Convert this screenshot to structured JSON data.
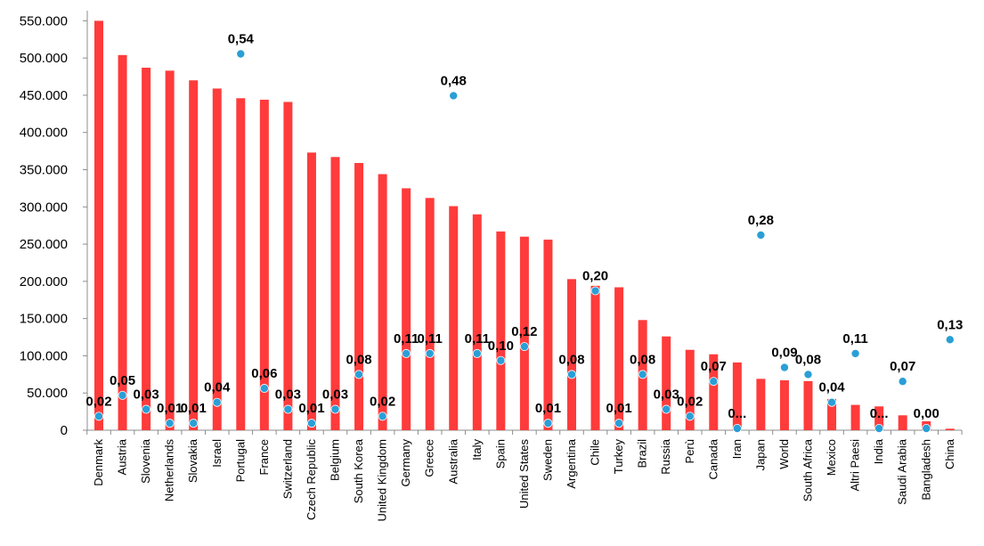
{
  "chart_data": {
    "type": "bar",
    "title": "",
    "xlabel": "",
    "ylabel": "",
    "ylim": [
      0,
      560000
    ],
    "y_ticks": [
      0,
      50000,
      100000,
      150000,
      200000,
      250000,
      300000,
      350000,
      400000,
      450000,
      500000,
      550000
    ],
    "y_tick_labels": [
      "0",
      "50.000",
      "100.000",
      "150.000",
      "200.000",
      "250.000",
      "300.000",
      "350.000",
      "400.000",
      "450.000",
      "500.000",
      "550.000"
    ],
    "grid": false,
    "legend": "none",
    "categories": [
      "Denmark",
      "Austria",
      "Slovenia",
      "Netherlands",
      "Slovakia",
      "Israel",
      "Portugal",
      "France",
      "Switzerland",
      "Czech Republic",
      "Belgium",
      "South Korea",
      "United Kingdom",
      "Germany",
      "Greece",
      "Australia",
      "Italy",
      "Spain",
      "United States",
      "Sweden",
      "Argentina",
      "Chile",
      "Turkey",
      "Brazil",
      "Russia",
      "Perù",
      "Canada",
      "Iran",
      "Japan",
      "World",
      "South Africa",
      "Mexico",
      "Altri Paesi",
      "India",
      "Saudi Arabia",
      "Bangladesh",
      "China"
    ],
    "series": [
      {
        "type": "bar",
        "color": "#ff3b3b",
        "values": [
          550000,
          504000,
          487000,
          483000,
          470000,
          459000,
          446000,
          444000,
          441000,
          373000,
          367000,
          359000,
          344000,
          325000,
          312000,
          301000,
          290000,
          267000,
          260000,
          256000,
          203000,
          194000,
          192000,
          148000,
          126000,
          108000,
          102000,
          91000,
          69000,
          67000,
          66000,
          42000,
          34000,
          32000,
          20000,
          12000,
          2000
        ]
      },
      {
        "type": "scatter",
        "color": "#2a9fd6",
        "values": [
          0.02,
          0.05,
          0.03,
          0.01,
          0.01,
          0.04,
          0.54,
          0.06,
          0.03,
          0.01,
          0.03,
          0.08,
          0.02,
          0.11,
          0.11,
          0.48,
          0.11,
          0.1,
          0.12,
          0.01,
          0.08,
          0.2,
          0.01,
          0.08,
          0.03,
          0.02,
          0.07,
          0.0,
          0.28,
          0.09,
          0.08,
          0.04,
          0.11,
          0.0,
          0.07,
          0.0,
          0.13
        ],
        "labels": [
          "0,02",
          "0,05",
          "0,03",
          "0,01",
          "0,01",
          "0,04",
          "0,54",
          "0,06",
          "0,03",
          "0,01",
          "0,03",
          "0,08",
          "0,02",
          "0,11",
          "0,11",
          "0,48",
          "0,11",
          "0,10",
          "0,12",
          "0,01",
          "0,08",
          "0,20",
          "0,01",
          "0,08",
          "0,03",
          "0,02",
          "0,07",
          "0...",
          "0,28",
          "0,09",
          "0,08",
          "0,04",
          "0,11",
          "0...",
          "0,07",
          "0,00",
          "0,13"
        ]
      }
    ]
  }
}
